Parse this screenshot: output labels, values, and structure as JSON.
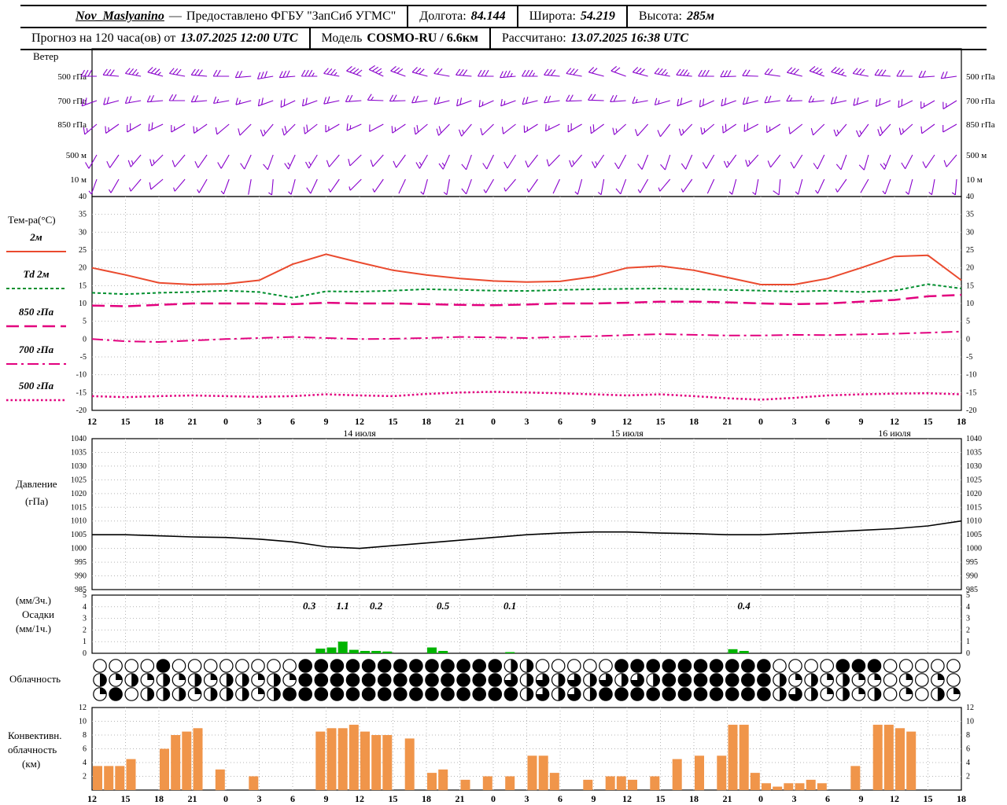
{
  "header": {
    "station": "Nov_Maslyanino",
    "dash": "—",
    "provider": "Предоставлено ФГБУ \"ЗапСиб УГМС\"",
    "lon_label": "Долгота:",
    "lon_value": "84.144",
    "lat_label": "Широта:",
    "lat_value": "54.219",
    "alt_label": "Высота:",
    "alt_value": "285м",
    "forecast_prefix": "Прогноз на 120 часа(ов) от",
    "forecast_time": "13.07.2025 12:00 UTC",
    "model_label": "Модель",
    "model_value": "COSMO-RU / 6.6км",
    "calc_label": "Рассчитано:",
    "calc_value": "13.07.2025 16:38 UTC"
  },
  "labels": {
    "wind_title": "Ветер",
    "temp_title": "Тем-ра(°C)",
    "pressure_title_1": "Давление",
    "pressure_title_2": "(гПа)",
    "precip_title_1": "(мм/3ч.)",
    "precip_title_2": "Осадки",
    "precip_title_3": "(мм/1ч.)",
    "clouds_title": "Облачность",
    "conv_title_1": "Конвективн.",
    "conv_title_2": "облачность",
    "conv_title_3": "(км)"
  },
  "chart_data": {
    "type": "meteogram",
    "x_hour_labels": [
      "12",
      "15",
      "18",
      "21",
      "0",
      "3",
      "6",
      "9",
      "12",
      "15",
      "18",
      "21",
      "0",
      "3",
      "6",
      "9",
      "12",
      "15",
      "18",
      "21",
      "0",
      "3",
      "6",
      "9",
      "12",
      "15",
      "18"
    ],
    "dates": [
      {
        "label": "14 июля",
        "tick": 8
      },
      {
        "label": "15 июля",
        "tick": 16
      },
      {
        "label": "16 июля",
        "tick": 24
      }
    ],
    "wind": {
      "color": "#8800cc",
      "levels": [
        {
          "name": "500 гПа",
          "dir": [
            270,
            275,
            280,
            285,
            280,
            275,
            270,
            265,
            260,
            265,
            270,
            280,
            290,
            295,
            290,
            285,
            280,
            275,
            270,
            265,
            270,
            275,
            280,
            285,
            290,
            285,
            280,
            275,
            270,
            268,
            272,
            278,
            284,
            290,
            286,
            280,
            274,
            270,
            266,
            262
          ],
          "speed": [
            15,
            15,
            18,
            18,
            15,
            15,
            12,
            12,
            15,
            15,
            18,
            18,
            20,
            18,
            15,
            15,
            12,
            15,
            15,
            18,
            18,
            15,
            15,
            12,
            12,
            15,
            18,
            18,
            15,
            15,
            12,
            12,
            15,
            18,
            18,
            15,
            15,
            12,
            12,
            10
          ]
        },
        {
          "name": "700 гПа",
          "dir": [
            250,
            255,
            260,
            265,
            270,
            265,
            260,
            255,
            250,
            245,
            250,
            258,
            266,
            272,
            268,
            262,
            256,
            250,
            246,
            250,
            256,
            262,
            268,
            272,
            266,
            260,
            254,
            250,
            246,
            250,
            256,
            262,
            268,
            264,
            258,
            252,
            248,
            244,
            240,
            238
          ],
          "speed": [
            10,
            10,
            12,
            12,
            10,
            10,
            8,
            8,
            10,
            12,
            12,
            10,
            10,
            8,
            10,
            12,
            12,
            10,
            8,
            8,
            10,
            10,
            12,
            12,
            10,
            8,
            8,
            10,
            10,
            12,
            12,
            10,
            8,
            8,
            10,
            10,
            12,
            10,
            8,
            8
          ]
        },
        {
          "name": "850 гПа",
          "dir": [
            230,
            235,
            240,
            245,
            240,
            235,
            230,
            225,
            220,
            225,
            232,
            240,
            246,
            242,
            236,
            230,
            224,
            220,
            226,
            232,
            238,
            244,
            240,
            234,
            228,
            222,
            218,
            224,
            230,
            236,
            242,
            238,
            232,
            226,
            220,
            216,
            222,
            228,
            234,
            240
          ],
          "speed": [
            8,
            8,
            10,
            10,
            8,
            8,
            6,
            6,
            8,
            10,
            10,
            8,
            8,
            6,
            8,
            10,
            10,
            8,
            6,
            6,
            8,
            8,
            10,
            10,
            8,
            6,
            6,
            8,
            8,
            10,
            10,
            8,
            6,
            6,
            8,
            8,
            10,
            8,
            6,
            6
          ]
        },
        {
          "name": "500 м",
          "dir": [
            210,
            215,
            220,
            225,
            220,
            215,
            210,
            205,
            200,
            205,
            212,
            220,
            226,
            222,
            216,
            210,
            204,
            200,
            206,
            212,
            218,
            224,
            220,
            214,
            208,
            202,
            198,
            204,
            210,
            216,
            222,
            218,
            212,
            206,
            200,
            196,
            202,
            208,
            214,
            220
          ],
          "speed": [
            6,
            6,
            8,
            8,
            6,
            6,
            5,
            5,
            6,
            8,
            8,
            6,
            6,
            5,
            6,
            8,
            8,
            6,
            5,
            5,
            6,
            6,
            8,
            8,
            6,
            5,
            5,
            6,
            6,
            8,
            8,
            6,
            5,
            5,
            6,
            6,
            8,
            6,
            5,
            5
          ]
        },
        {
          "name": "10 м",
          "dir": [
            200,
            210,
            220,
            230,
            220,
            210,
            200,
            190,
            185,
            195,
            205,
            215,
            225,
            215,
            205,
            195,
            190,
            200,
            210,
            220,
            215,
            205,
            195,
            190,
            200,
            210,
            220,
            215,
            205,
            195,
            190,
            185,
            195,
            205,
            215,
            210,
            200,
            195,
            190,
            185
          ],
          "speed": [
            3,
            3,
            4,
            5,
            4,
            3,
            3,
            2,
            3,
            4,
            5,
            4,
            3,
            3,
            2,
            3,
            4,
            5,
            4,
            3,
            3,
            2,
            3,
            4,
            5,
            4,
            3,
            3,
            2,
            3,
            4,
            5,
            4,
            3,
            3,
            2,
            3,
            4,
            4,
            3
          ]
        }
      ]
    },
    "temperature": {
      "ylim": [
        -20,
        40
      ],
      "tick_step": 5,
      "series": [
        {
          "name": "2м",
          "color": "#ea4a2e",
          "dash": "",
          "width": 2,
          "values": [
            20,
            18,
            15.8,
            15.3,
            15.5,
            16.5,
            21,
            23.8,
            21.5,
            19.3,
            18,
            17,
            16.3,
            16,
            16.2,
            17.5,
            20,
            20.5,
            19.3,
            17.3,
            15.3,
            15.3,
            17,
            20,
            23.2,
            23.5,
            16.5
          ]
        },
        {
          "name": "Td 2м",
          "color": "#008f2e",
          "dash": "4,3",
          "width": 2,
          "values": [
            13,
            12.6,
            13,
            13.2,
            13.6,
            13.2,
            11.6,
            13.4,
            13.3,
            13.6,
            14,
            13.8,
            13.6,
            13.5,
            13.8,
            14,
            14.1,
            14.2,
            14,
            13.8,
            13.6,
            13.3,
            13.6,
            13.2,
            13.6,
            15.4,
            14.2
          ]
        },
        {
          "name": "850 гПа",
          "color": "#e2007e",
          "dash": "16,7",
          "width": 2.5,
          "values": [
            9.4,
            9.2,
            9.6,
            10,
            10,
            10,
            9.8,
            10.2,
            10,
            10,
            9.8,
            9.6,
            9.5,
            9.7,
            10,
            10,
            10.2,
            10.5,
            10.5,
            10.3,
            10,
            9.8,
            10,
            10.5,
            11,
            12,
            12.4
          ]
        },
        {
          "name": "700 гПа",
          "color": "#e2007e",
          "dash": "14,5,3,5",
          "width": 2,
          "values": [
            0,
            -0.6,
            -0.8,
            -0.4,
            0,
            0.3,
            0.6,
            0.3,
            0,
            0.1,
            0.3,
            0.6,
            0.5,
            0.3,
            0.6,
            0.8,
            1.1,
            1.4,
            1.2,
            1,
            1,
            1.2,
            1.1,
            1.3,
            1.5,
            1.8,
            2.1
          ]
        },
        {
          "name": "500 гПа",
          "color": "#e2007e",
          "dash": "2.5,3",
          "width": 2.5,
          "values": [
            -16,
            -16.3,
            -16,
            -15.8,
            -16,
            -16.2,
            -16,
            -15.5,
            -15.8,
            -16,
            -15.4,
            -15,
            -14.8,
            -15,
            -15.2,
            -15.5,
            -15.8,
            -15.5,
            -16,
            -16.6,
            -17,
            -16.5,
            -15.8,
            -15.5,
            -15.3,
            -15.2,
            -15.5
          ]
        }
      ]
    },
    "pressure": {
      "ylim": [
        985,
        1040
      ],
      "tick_step": 5,
      "color": "#000000",
      "values": [
        1005,
        1005,
        1004.6,
        1004.2,
        1004,
        1003.4,
        1002.4,
        1000.6,
        1000,
        1001,
        1002,
        1003,
        1004,
        1005,
        1005.6,
        1006,
        1006,
        1005.6,
        1005.4,
        1005,
        1005,
        1005.5,
        1006,
        1006.6,
        1007.2,
        1008.2,
        1010
      ]
    },
    "precip": {
      "ylim": [
        0,
        5
      ],
      "tick_step": 1,
      "color": "#00b400",
      "bars": [
        {
          "h": 20,
          "v": 0.4
        },
        {
          "h": 21,
          "v": 0.5
        },
        {
          "h": 22,
          "v": 1.0
        },
        {
          "h": 23,
          "v": 0.3
        },
        {
          "h": 24,
          "v": 0.2
        },
        {
          "h": 25,
          "v": 0.2
        },
        {
          "h": 26,
          "v": 0.15
        },
        {
          "h": 30,
          "v": 0.5
        },
        {
          "h": 31,
          "v": 0.2
        },
        {
          "h": 37,
          "v": 0.1
        },
        {
          "h": 57,
          "v": 0.35
        },
        {
          "h": 58,
          "v": 0.2
        }
      ],
      "value_labels": [
        {
          "h": 19,
          "t": "0.3"
        },
        {
          "h": 22,
          "t": "1.1"
        },
        {
          "h": 25,
          "t": "0.2"
        },
        {
          "h": 31,
          "t": "0.5"
        },
        {
          "h": 37,
          "t": "0.1"
        },
        {
          "h": 58,
          "t": "0.4"
        }
      ]
    },
    "cloud_rows": [
      "0000400000000444444444444422000004444444444000044400000",
      "2121212122121444444444444432323232324444444212121101010",
      "1402221222124444444444444442323244444444444232121201021"
    ],
    "convective": {
      "ylim": [
        0,
        12
      ],
      "tick_step": 2,
      "color": "#f0954a",
      "bars": [
        {
          "h": 0,
          "v": 3.5
        },
        {
          "h": 1,
          "v": 3.5
        },
        {
          "h": 2,
          "v": 3.5
        },
        {
          "h": 3,
          "v": 4.5
        },
        {
          "h": 6,
          "v": 6
        },
        {
          "h": 7,
          "v": 8
        },
        {
          "h": 8,
          "v": 8.5
        },
        {
          "h": 9,
          "v": 9
        },
        {
          "h": 11,
          "v": 3
        },
        {
          "h": 14,
          "v": 2
        },
        {
          "h": 20,
          "v": 8.5
        },
        {
          "h": 21,
          "v": 9
        },
        {
          "h": 22,
          "v": 9
        },
        {
          "h": 23,
          "v": 9.5
        },
        {
          "h": 24,
          "v": 8.5
        },
        {
          "h": 25,
          "v": 8
        },
        {
          "h": 26,
          "v": 8
        },
        {
          "h": 28,
          "v": 7.5
        },
        {
          "h": 30,
          "v": 2.5
        },
        {
          "h": 31,
          "v": 3
        },
        {
          "h": 33,
          "v": 1.5
        },
        {
          "h": 35,
          "v": 2
        },
        {
          "h": 37,
          "v": 2
        },
        {
          "h": 39,
          "v": 5
        },
        {
          "h": 40,
          "v": 5
        },
        {
          "h": 41,
          "v": 2.5
        },
        {
          "h": 44,
          "v": 1.5
        },
        {
          "h": 46,
          "v": 2
        },
        {
          "h": 47,
          "v": 2
        },
        {
          "h": 48,
          "v": 1.5
        },
        {
          "h": 50,
          "v": 2
        },
        {
          "h": 52,
          "v": 4.5
        },
        {
          "h": 54,
          "v": 5
        },
        {
          "h": 56,
          "v": 5
        },
        {
          "h": 57,
          "v": 9.5
        },
        {
          "h": 58,
          "v": 9.5
        },
        {
          "h": 59,
          "v": 2.5
        },
        {
          "h": 60,
          "v": 1
        },
        {
          "h": 61,
          "v": 0.5
        },
        {
          "h": 62,
          "v": 1
        },
        {
          "h": 63,
          "v": 1
        },
        {
          "h": 64,
          "v": 1.5
        },
        {
          "h": 65,
          "v": 1
        },
        {
          "h": 68,
          "v": 3.5
        },
        {
          "h": 70,
          "v": 9.5
        },
        {
          "h": 71,
          "v": 9.5
        },
        {
          "h": 72,
          "v": 9
        },
        {
          "h": 73,
          "v": 8.5
        }
      ]
    }
  }
}
